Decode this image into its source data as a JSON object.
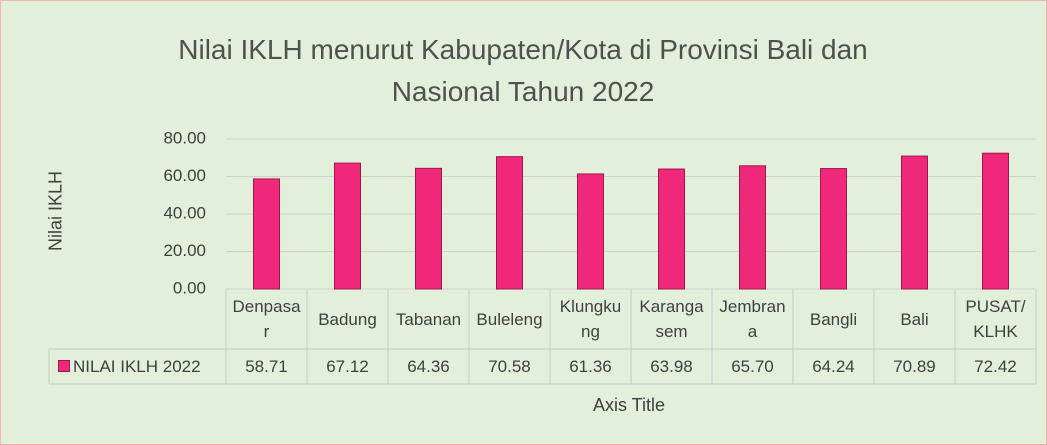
{
  "chart_data": {
    "type": "bar",
    "title": "Nilai IKLH menurut Kabupaten/Kota di Provinsi Bali dan Nasional Tahun 2022",
    "y_label": "Nilai IKLH",
    "x_label": "Axis Title",
    "categories": [
      "Denpasar",
      "Badung",
      "Tabanan",
      "Buleleng",
      "Klungkung",
      "Karangasem",
      "Jembrana",
      "Bangli",
      "Bali",
      "PUSAT/KLHK"
    ],
    "series": [
      {
        "name": "NILAI IKLH 2022",
        "color": "#f0287a",
        "values": [
          58.71,
          67.12,
          64.36,
          70.58,
          61.36,
          63.98,
          65.7,
          64.24,
          70.89,
          72.42
        ],
        "value_labels": [
          "58.71",
          "67.12",
          "64.36",
          "70.58",
          "61.36",
          "63.98",
          "65.70",
          "64.24",
          "70.89",
          "72.42"
        ]
      }
    ],
    "ylim": [
      0,
      80
    ],
    "yticks": [
      {
        "value": 0,
        "label": "0.00"
      },
      {
        "value": 20,
        "label": "20.00"
      },
      {
        "value": 40,
        "label": "40.00"
      },
      {
        "value": 60,
        "label": "60.00"
      },
      {
        "value": 80,
        "label": "80.00"
      }
    ],
    "grid": true
  }
}
